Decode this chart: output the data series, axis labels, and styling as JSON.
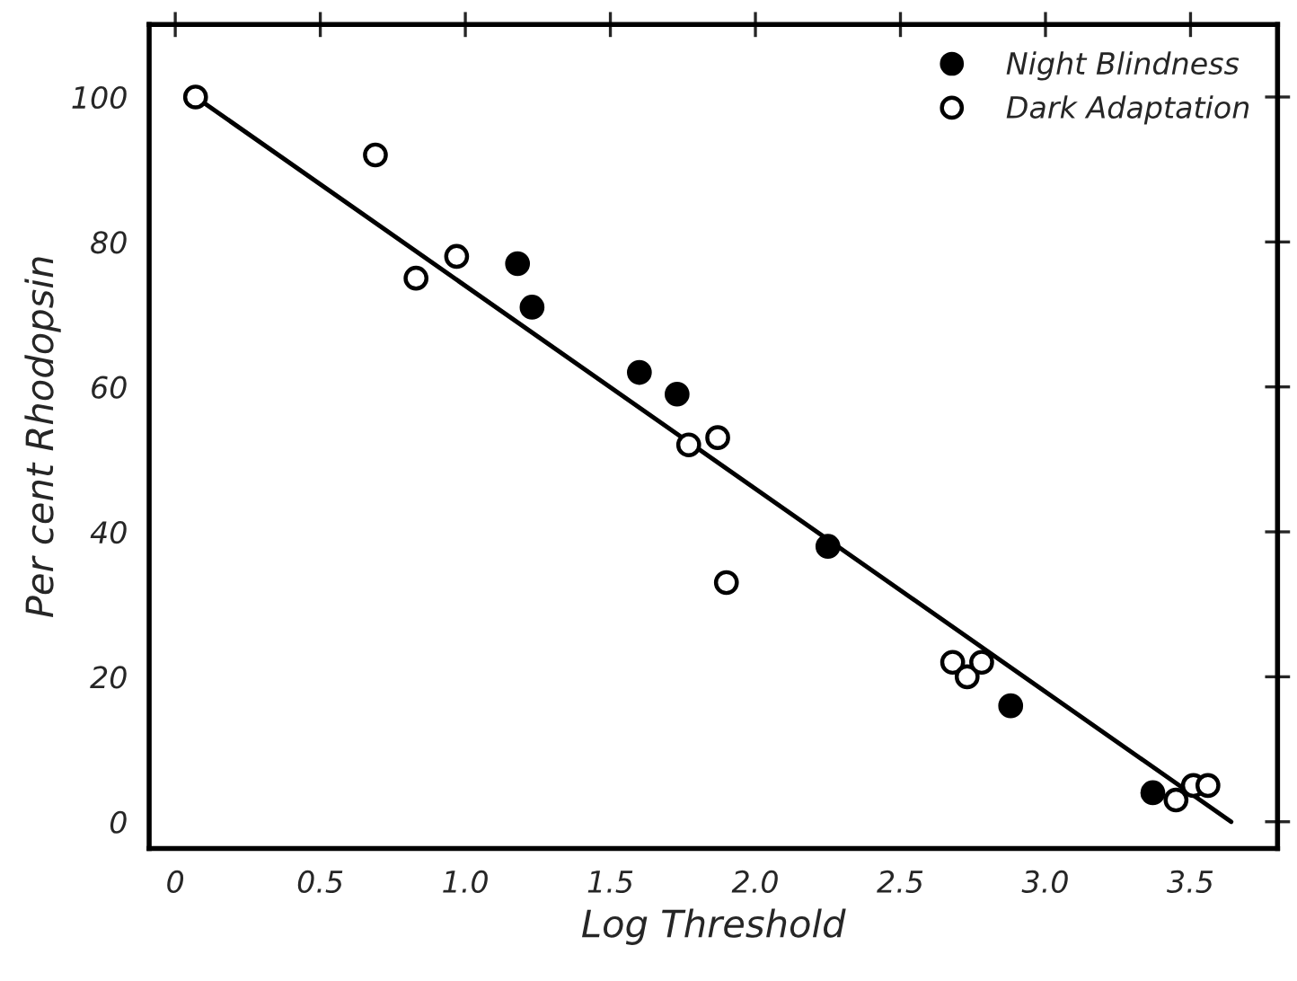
{
  "chart_data": {
    "type": "scatter",
    "xlabel": "Log Threshold",
    "ylabel": "Per cent Rhodopsin",
    "xlim": [
      -0.09,
      3.8
    ],
    "ylim": [
      -3.7,
      110
    ],
    "xticks": [
      {
        "value": 0,
        "label": "0"
      },
      {
        "value": 0.5,
        "label": "0.5"
      },
      {
        "value": 1,
        "label": "1.0"
      },
      {
        "value": 1.5,
        "label": "1.5"
      },
      {
        "value": 2,
        "label": "2.0"
      },
      {
        "value": 2.5,
        "label": "2.5"
      },
      {
        "value": 3,
        "label": "3.0"
      },
      {
        "value": 3.5,
        "label": "3.5"
      }
    ],
    "yticks": [
      0,
      20,
      40,
      60,
      80,
      100
    ],
    "grid": false,
    "legend": "top right",
    "series": [
      {
        "name": "Night Blindness",
        "color": "#000000",
        "marker": "circle",
        "x": [
          1.18,
          1.23,
          1.6,
          1.73,
          2.25,
          2.88,
          3.37
        ],
        "values": [
          77,
          71,
          62,
          59,
          38,
          16,
          4
        ]
      },
      {
        "name": "Dark Adaptation",
        "color": "#ffffff",
        "marker": "circle",
        "x": [
          0.07,
          0.69,
          0.83,
          0.97,
          1.77,
          1.87,
          1.9,
          2.68,
          2.73,
          2.78,
          3.45,
          3.51,
          3.56
        ],
        "values": [
          100,
          92,
          75,
          78,
          52,
          53,
          33,
          22,
          20,
          22,
          3,
          5,
          5
        ]
      },
      {
        "type": "line",
        "color": "#000000",
        "line_style": "solid",
        "x": [
          0.07,
          3.64
        ],
        "values": [
          100,
          0
        ]
      }
    ]
  }
}
